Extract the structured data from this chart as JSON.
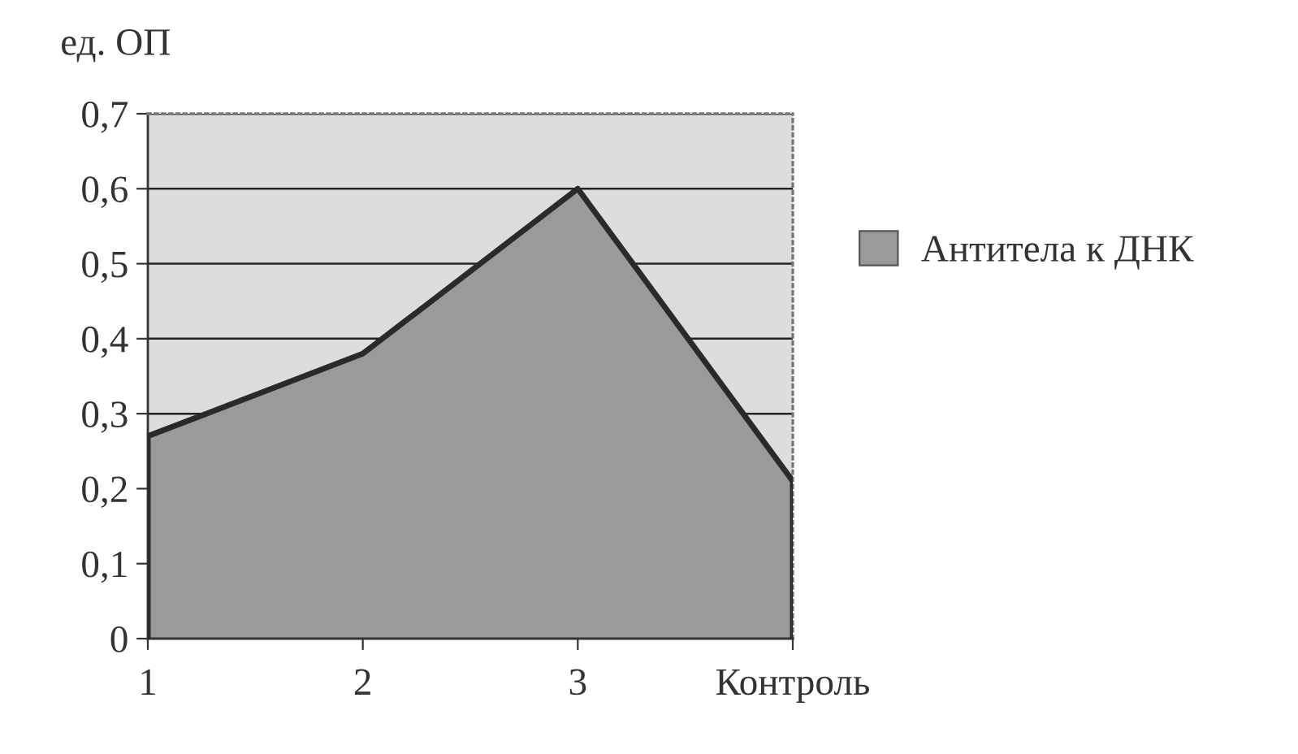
{
  "chart_data": {
    "type": "area",
    "ylabel": "ед. ОП",
    "categories": [
      "1",
      "2",
      "3",
      "Контроль"
    ],
    "series": [
      {
        "name": "Антитела к ДНК",
        "color": "#9a9a9a",
        "values": [
          0.27,
          0.38,
          0.6,
          0.21
        ]
      }
    ],
    "ylim": [
      0,
      0.7
    ],
    "yticks": [
      0,
      {
        "value": 0.1,
        "label": "0,1"
      },
      {
        "value": 0.2,
        "label": "0,2"
      },
      {
        "value": 0.3,
        "label": "0,3"
      },
      {
        "value": 0.4,
        "label": "0,4"
      },
      {
        "value": 0.5,
        "label": "0,5"
      },
      {
        "value": 0.6,
        "label": "0,6"
      },
      {
        "value": 0.7,
        "label": "0,7"
      }
    ],
    "grid": "y",
    "legend": "right"
  }
}
